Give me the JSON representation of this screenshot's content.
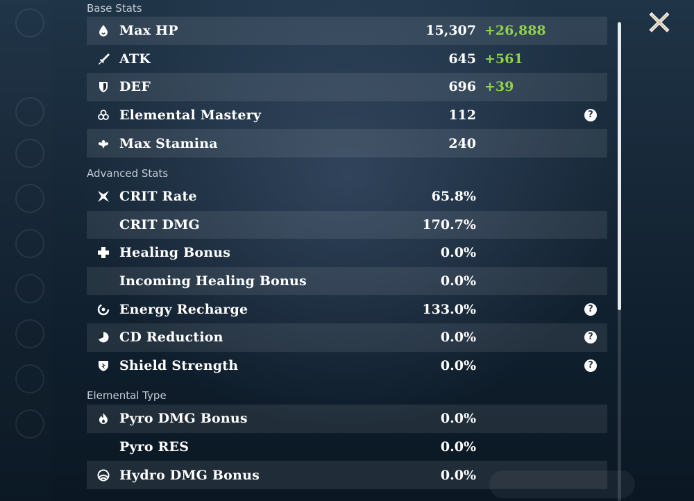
{
  "close_icon": "close-icon",
  "sections": {
    "base_title": "Base Stats",
    "advanced_title": "Advanced Stats",
    "elemental_title": "Elemental Type"
  },
  "base_stats": [
    {
      "icon": "droplet-icon",
      "label": "Max HP",
      "value": "15,307",
      "bonus": "+26,888",
      "help": false
    },
    {
      "icon": "sword-icon",
      "label": "ATK",
      "value": "645",
      "bonus": "+561",
      "help": false
    },
    {
      "icon": "shield-icon",
      "label": "DEF",
      "value": "696",
      "bonus": "+39",
      "help": false
    },
    {
      "icon": "elemental-mastery-icon",
      "label": "Elemental Mastery",
      "value": "112",
      "bonus": "",
      "help": true
    },
    {
      "icon": "stamina-icon",
      "label": "Max Stamina",
      "value": "240",
      "bonus": "",
      "help": false
    }
  ],
  "advanced_stats": [
    {
      "icon": "crit-icon",
      "label": "CRIT Rate",
      "value": "65.8%",
      "help": false
    },
    {
      "icon": "",
      "label": "CRIT DMG",
      "value": "170.7%",
      "help": false
    },
    {
      "icon": "plus-icon",
      "label": "Healing Bonus",
      "value": "0.0%",
      "help": false
    },
    {
      "icon": "",
      "label": "Incoming Healing Bonus",
      "value": "0.0%",
      "help": false
    },
    {
      "icon": "energy-recharge-icon",
      "label": "Energy Recharge",
      "value": "133.0%",
      "help": true
    },
    {
      "icon": "cd-reduction-icon",
      "label": "CD Reduction",
      "value": "0.0%",
      "help": true
    },
    {
      "icon": "shield-strength-icon",
      "label": "Shield Strength",
      "value": "0.0%",
      "help": true
    }
  ],
  "elemental_stats": [
    {
      "icon": "pyro-icon",
      "label": "Pyro DMG Bonus",
      "value": "0.0%"
    },
    {
      "icon": "",
      "label": "Pyro RES",
      "value": "0.0%"
    },
    {
      "icon": "hydro-icon",
      "label": "Hydro DMG Bonus",
      "value": "0.0%"
    }
  ],
  "help_glyph": "?",
  "colors": {
    "bonus_green": "#8fd14a",
    "row_stripe": "rgba(255,255,255,0.085)",
    "section_label": "#c4ccd6"
  }
}
